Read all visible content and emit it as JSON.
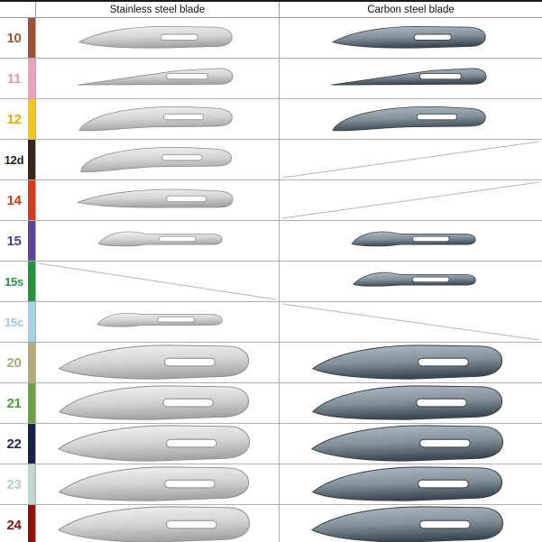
{
  "header": {
    "stainless_label": "Stainless steel blade",
    "carbon_label": "Carbon steel blade"
  },
  "blade_palette": {
    "stainless": {
      "light": "#f7f7f7",
      "mid": "#d7d7d7",
      "dark": "#a8a8a8",
      "stroke": "#8b8b8b"
    },
    "carbon": {
      "light": "#b7c1c7",
      "mid": "#86949d",
      "dark": "#3e4b54",
      "stroke": "#333c44"
    }
  },
  "na_line_color": "#b6b6b6",
  "rows": [
    {
      "id": "10",
      "label": "10",
      "label_color": "#a2542e",
      "stripe_color": "#a04f38",
      "shape": "b10",
      "size": "m",
      "stainless": true,
      "carbon": true,
      "na_dir": ""
    },
    {
      "id": "11",
      "label": "11",
      "label_color": "#e897b3",
      "stripe_color": "#ee9fba",
      "shape": "b11",
      "size": "m",
      "stainless": true,
      "carbon": true,
      "na_dir": ""
    },
    {
      "id": "12",
      "label": "12",
      "label_color": "#e9ab00",
      "stripe_color": "#f3c71d",
      "shape": "b12",
      "size": "m",
      "stainless": true,
      "carbon": true,
      "na_dir": ""
    },
    {
      "id": "12d",
      "label": "12d",
      "label_color": "#241d12",
      "stripe_color": "#342718",
      "shape": "b12d",
      "size": "m",
      "stainless": true,
      "carbon": false,
      "na_dir": "up"
    },
    {
      "id": "14",
      "label": "14",
      "label_color": "#d13d1a",
      "stripe_color": "#d13d1a",
      "shape": "b14",
      "size": "m",
      "stainless": true,
      "carbon": false,
      "na_dir": "up"
    },
    {
      "id": "15",
      "label": "15",
      "label_color": "#53418f",
      "stripe_color": "#5a4694",
      "shape": "b15",
      "size": "s",
      "stainless": true,
      "carbon": true,
      "na_dir": ""
    },
    {
      "id": "15s",
      "label": "15s",
      "label_color": "#23913f",
      "stripe_color": "#23913f",
      "shape": "b15s",
      "size": "s",
      "stainless": false,
      "carbon": true,
      "na_dir": "down"
    },
    {
      "id": "15c",
      "label": "15c",
      "label_color": "#9cc9e3",
      "stripe_color": "#a8cfe5",
      "shape": "b15c",
      "size": "s",
      "stainless": true,
      "carbon": false,
      "na_dir": "down"
    },
    {
      "id": "20",
      "label": "20",
      "label_color": "#b3a76f",
      "stripe_color": "#b5aa7b",
      "shape": "b20",
      "size": "l",
      "stainless": true,
      "carbon": true,
      "na_dir": ""
    },
    {
      "id": "21",
      "label": "21",
      "label_color": "#4ba03c",
      "stripe_color": "#68a043",
      "shape": "b21",
      "size": "l",
      "stainless": true,
      "carbon": true,
      "na_dir": ""
    },
    {
      "id": "22",
      "label": "22",
      "label_color": "#1c2a52",
      "stripe_color": "#16224a",
      "shape": "b22",
      "size": "l",
      "stainless": true,
      "carbon": true,
      "na_dir": ""
    },
    {
      "id": "23",
      "label": "23",
      "label_color": "#b2d2c9",
      "stripe_color": "#bcd8d0",
      "shape": "b23",
      "size": "l",
      "stainless": true,
      "carbon": true,
      "na_dir": ""
    },
    {
      "id": "24",
      "label": "24",
      "label_color": "#8d140f",
      "stripe_color": "#8d140f",
      "shape": "b24",
      "size": "l",
      "stainless": true,
      "carbon": true,
      "na_dir": ""
    }
  ]
}
